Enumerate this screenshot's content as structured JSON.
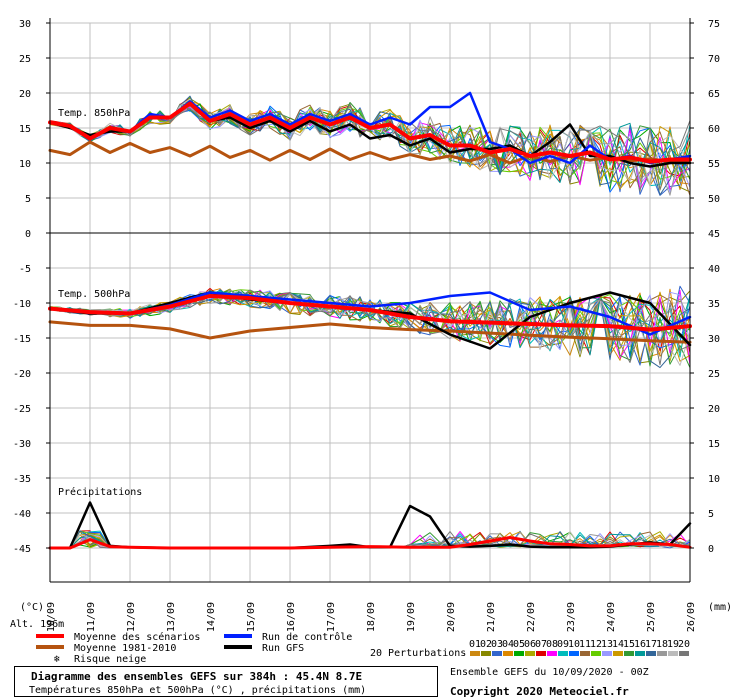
{
  "chart_data": {
    "type": "line",
    "title": "Diagramme des ensembles GEFS sur 384h : 45.4N 8.7E",
    "subtitle": "Températures 850hPa et 500hPa (°C) , précipitations (mm)",
    "run": "Ensemble GEFS du 10/09/2020 - 00Z",
    "copyright": "Copyright 2020 Meteociel.fr",
    "altitude": "Alt. 196m",
    "left_axis": {
      "unit": "(°C)",
      "ticks": [
        30,
        25,
        20,
        15,
        10,
        5,
        0,
        -5,
        -10,
        -15,
        -20,
        -25,
        -30,
        -35,
        -40,
        -45
      ]
    },
    "right_axis": {
      "unit": "(mm)",
      "ticks": [
        75,
        70,
        65,
        60,
        55,
        50,
        45,
        40,
        35,
        30,
        25,
        20,
        15,
        10,
        5,
        0
      ]
    },
    "x_dates": [
      "10/09",
      "11/09",
      "12/09",
      "13/09",
      "14/09",
      "15/09",
      "16/09",
      "17/09",
      "18/09",
      "19/09",
      "20/09",
      "21/09",
      "22/09",
      "23/09",
      "24/09",
      "25/09",
      "26/09"
    ],
    "panels": [
      {
        "label": "Temp. 850hPa",
        "ylim": [
          0,
          30
        ],
        "right_ylim": [
          45,
          75
        ]
      },
      {
        "label": "Temp. 500hPa",
        "ylim": [
          -30,
          0
        ],
        "right_ylim": [
          15,
          45
        ]
      },
      {
        "label": "Précipitations",
        "ylim": [
          -50,
          -30
        ],
        "right_ylim": [
          0,
          15
        ]
      }
    ],
    "legend": [
      {
        "name": "Moyenne des scénarios",
        "color": "#ff0000"
      },
      {
        "name": "Moyenne 1981-2010",
        "color": "#b5530f"
      },
      {
        "name": "Risque neige",
        "color": "#3399ff",
        "icon": "snowflake-icon"
      },
      {
        "name": "Run de contrôle",
        "color": "#0020ff"
      },
      {
        "name": "Run GFS",
        "color": "#000000"
      }
    ],
    "perturbations_label": "20 Perturbations",
    "perturbations": [
      {
        "id": "01",
        "color": "#cc8811"
      },
      {
        "id": "02",
        "color": "#888800"
      },
      {
        "id": "03",
        "color": "#3366cc"
      },
      {
        "id": "04",
        "color": "#dd8800"
      },
      {
        "id": "05",
        "color": "#00aa00"
      },
      {
        "id": "06",
        "color": "#aaaa00"
      },
      {
        "id": "07",
        "color": "#dd0000"
      },
      {
        "id": "08",
        "color": "#ff00ff"
      },
      {
        "id": "09",
        "color": "#00bbbb"
      },
      {
        "id": "10",
        "color": "#0066ff"
      },
      {
        "id": "11",
        "color": "#996633"
      },
      {
        "id": "12",
        "color": "#66cc00"
      },
      {
        "id": "13",
        "color": "#9999ff"
      },
      {
        "id": "14",
        "color": "#cc9900"
      },
      {
        "id": "15",
        "color": "#339933"
      },
      {
        "id": "16",
        "color": "#009999"
      },
      {
        "id": "17",
        "color": "#336699"
      },
      {
        "id": "18",
        "color": "#999999"
      },
      {
        "id": "19",
        "color": "#bbbbbb"
      },
      {
        "id": "20",
        "color": "#777777"
      }
    ],
    "series": [
      {
        "name": "Moyenne 1981-2010 (850hPa)",
        "role": "clim850",
        "x": [
          0,
          0.5,
          1,
          1.5,
          2,
          2.5,
          3,
          3.5,
          4,
          4.5,
          5,
          5.5,
          6,
          6.5,
          7,
          7.5,
          8,
          8.5,
          9,
          9.5,
          10,
          10.5,
          11,
          11.5,
          12,
          12.5,
          13,
          13.5,
          14,
          14.5,
          15,
          15.5,
          16
        ],
        "values": [
          11.8,
          11.2,
          13,
          11.5,
          12.8,
          11.5,
          12.2,
          11,
          12.4,
          10.8,
          11.8,
          10.4,
          11.8,
          10.5,
          12,
          10.5,
          11.5,
          10.5,
          11.2,
          10.5,
          11,
          10.3,
          11.2,
          10,
          11,
          10.2,
          11,
          10.4,
          10.8,
          10.3,
          10.6,
          10.2,
          10.4
        ]
      },
      {
        "name": "Moyenne des scénarios (850hPa)",
        "role": "mean850",
        "x": [
          0,
          0.5,
          1,
          1.5,
          2,
          2.5,
          3,
          3.5,
          4,
          4.5,
          5,
          5.5,
          6,
          6.5,
          7,
          7.5,
          8,
          8.5,
          9,
          9.5,
          10,
          10.5,
          11,
          11.5,
          12,
          12.5,
          13,
          13.5,
          14,
          14.5,
          15,
          15.5,
          16
        ],
        "values": [
          15.8,
          15.3,
          13.5,
          15,
          14.5,
          16.5,
          16.5,
          18.5,
          16,
          17,
          15.5,
          16.5,
          15,
          16.5,
          15.5,
          16.5,
          15,
          15.5,
          13.5,
          14,
          12.5,
          12.5,
          11.5,
          12,
          11,
          11.5,
          11,
          11.5,
          10.5,
          10.8,
          10.2,
          10.5,
          10.5
        ]
      },
      {
        "name": "Run de contrôle (850hPa)",
        "role": "ctrl850",
        "x": [
          0,
          0.5,
          1,
          1.5,
          2,
          2.5,
          3,
          3.5,
          4,
          4.5,
          5,
          5.5,
          6,
          6.5,
          7,
          7.5,
          8,
          8.5,
          9,
          9.5,
          10,
          10.5,
          11,
          11.5,
          12,
          12.5,
          13,
          13.5,
          14,
          14.5,
          15,
          15.5,
          16
        ],
        "values": [
          15.8,
          15.3,
          13.5,
          15,
          14.5,
          17,
          16.5,
          18.8,
          16.5,
          17.5,
          16,
          17,
          15.5,
          17,
          16,
          17,
          15.5,
          16.5,
          15.5,
          18,
          18,
          20,
          13,
          12,
          10,
          11,
          10,
          12.5,
          10.5,
          11,
          10,
          10.5,
          11
        ]
      },
      {
        "name": "Run GFS (850hPa)",
        "role": "gfs850",
        "x": [
          0,
          0.5,
          1,
          1.5,
          2,
          2.5,
          3,
          3.5,
          4,
          4.5,
          5,
          5.5,
          6,
          6.5,
          7,
          7.5,
          8,
          8.5,
          9,
          9.5,
          10,
          10.5,
          11,
          11.5,
          12,
          12.5,
          13,
          13.5,
          14,
          14.5,
          15,
          15.5,
          16
        ],
        "values": [
          15.8,
          15,
          14,
          14.5,
          14.5,
          16.5,
          16.5,
          18.5,
          16,
          16.5,
          15,
          16,
          14.5,
          16,
          14.5,
          15.5,
          13.5,
          14,
          12.5,
          13.5,
          11.5,
          12,
          12,
          12.5,
          11,
          13,
          15.5,
          11,
          11,
          10,
          9.5,
          10,
          10
        ]
      },
      {
        "name": "Moyenne 1981-2010 (500hPa)",
        "role": "clim500",
        "x": [
          0,
          1,
          2,
          3,
          4,
          5,
          6,
          7,
          8,
          9,
          10,
          11,
          12,
          13,
          14,
          15,
          16
        ],
        "values": [
          -12.7,
          -13.2,
          -13.2,
          -13.7,
          -15,
          -14,
          -13.5,
          -13,
          -13.5,
          -13.8,
          -14,
          -14.3,
          -14.6,
          -14.9,
          -15.1,
          -15.4,
          -15.6
        ]
      },
      {
        "name": "Moyenne des scénarios (500hPa)",
        "role": "mean500",
        "x": [
          0,
          1,
          2,
          3,
          4,
          5,
          6,
          7,
          8,
          9,
          10,
          11,
          12,
          13,
          14,
          15,
          16
        ],
        "values": [
          -10.8,
          -11.3,
          -11.5,
          -10.5,
          -9,
          -9.3,
          -10,
          -10.5,
          -11,
          -12,
          -12.6,
          -12.8,
          -13,
          -13.2,
          -13.3,
          -13.8,
          -13.3
        ]
      },
      {
        "name": "Run de contrôle (500hPa)",
        "role": "ctrl500",
        "x": [
          0,
          1,
          2,
          3,
          4,
          5,
          6,
          7,
          8,
          9,
          10,
          11,
          12,
          13,
          14,
          15,
          16
        ],
        "values": [
          -10.8,
          -11.3,
          -11.5,
          -10.3,
          -8.5,
          -9,
          -9.5,
          -10,
          -10.5,
          -10,
          -9,
          -8.5,
          -11,
          -10.5,
          -12,
          -14.5,
          -12
        ]
      },
      {
        "name": "Run GFS (500hPa)",
        "role": "gfs500",
        "x": [
          0,
          1,
          2,
          3,
          4,
          5,
          6,
          7,
          8,
          9,
          10,
          11,
          12,
          13,
          14,
          15,
          16
        ],
        "values": [
          -10.8,
          -11.5,
          -11.5,
          -10,
          -8.5,
          -9.5,
          -10,
          -10.5,
          -11,
          -11.5,
          -14.5,
          -16.5,
          -12,
          -10,
          -8.5,
          -10,
          -16
        ]
      },
      {
        "name": "Moyenne des scénarios (précip.)",
        "role": "meanPr",
        "x": [
          0,
          0.5,
          1,
          1.5,
          2,
          3,
          4,
          5,
          6,
          7,
          8,
          9,
          10,
          10.5,
          11,
          11.5,
          12,
          12.5,
          13,
          13.5,
          14,
          14.5,
          15,
          15.5,
          16
        ],
        "values": [
          0,
          0,
          1.2,
          0.2,
          0.1,
          0,
          0,
          0,
          0,
          0.1,
          0.2,
          0.1,
          0.1,
          0.5,
          1,
          1.5,
          1,
          0.6,
          0.5,
          0.3,
          0.3,
          0.6,
          0.6,
          0.5,
          0.1
        ]
      },
      {
        "name": "Run GFS (précip.)",
        "role": "gfsPr",
        "x": [
          0,
          0.5,
          1,
          1.5,
          2,
          3,
          4,
          5,
          6,
          7,
          7.5,
          8,
          8.5,
          9,
          9.5,
          10,
          10.5,
          11,
          11.5,
          12,
          12.5,
          13,
          13.5,
          14,
          14.5,
          15,
          15.5,
          16
        ],
        "values": [
          0,
          0,
          6.5,
          0.3,
          0.1,
          0,
          0,
          0,
          0,
          0.3,
          0.5,
          0.1,
          0.1,
          6,
          4.5,
          0.3,
          0.2,
          0.3,
          0.5,
          0.2,
          0.1,
          0.1,
          0.1,
          0.2,
          0.5,
          0.8,
          0.5,
          3.5
        ]
      }
    ]
  }
}
